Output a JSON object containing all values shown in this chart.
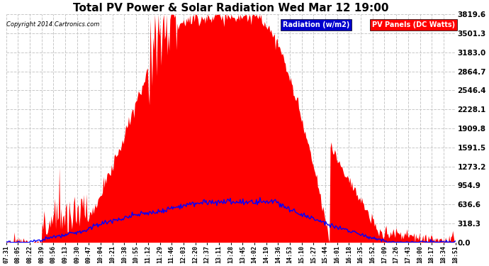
{
  "title": "Total PV Power & Solar Radiation Wed Mar 12 19:00",
  "copyright": "Copyright 2014 Cartronics.com",
  "yticks": [
    0.0,
    318.3,
    636.6,
    954.9,
    1273.2,
    1591.5,
    1909.8,
    2228.1,
    2546.4,
    2864.7,
    3183.0,
    3501.3,
    3819.6
  ],
  "ymax": 3819.6,
  "ymin": 0.0,
  "bg_color": "#ffffff",
  "plot_bg_color": "#ffffff",
  "grid_color": "#c8c8c8",
  "pv_color": "#ff0000",
  "radiation_color": "#0000ff",
  "legend_radiation_bg": "#0000cd",
  "legend_pv_bg": "#ff0000",
  "legend_radiation_text": "Radiation (w/m2)",
  "legend_pv_text": "PV Panels (DC Watts)",
  "xtick_labels": [
    "07:31",
    "08:05",
    "08:22",
    "08:39",
    "08:56",
    "09:13",
    "09:30",
    "09:47",
    "10:04",
    "10:21",
    "10:38",
    "10:55",
    "11:12",
    "11:29",
    "11:46",
    "12:03",
    "12:20",
    "12:37",
    "13:11",
    "13:28",
    "13:45",
    "14:02",
    "14:19",
    "14:36",
    "14:53",
    "15:10",
    "15:27",
    "15:44",
    "16:01",
    "16:18",
    "16:35",
    "16:52",
    "17:09",
    "17:26",
    "17:43",
    "18:00",
    "18:17",
    "18:34",
    "18:51"
  ],
  "n_points": 500
}
